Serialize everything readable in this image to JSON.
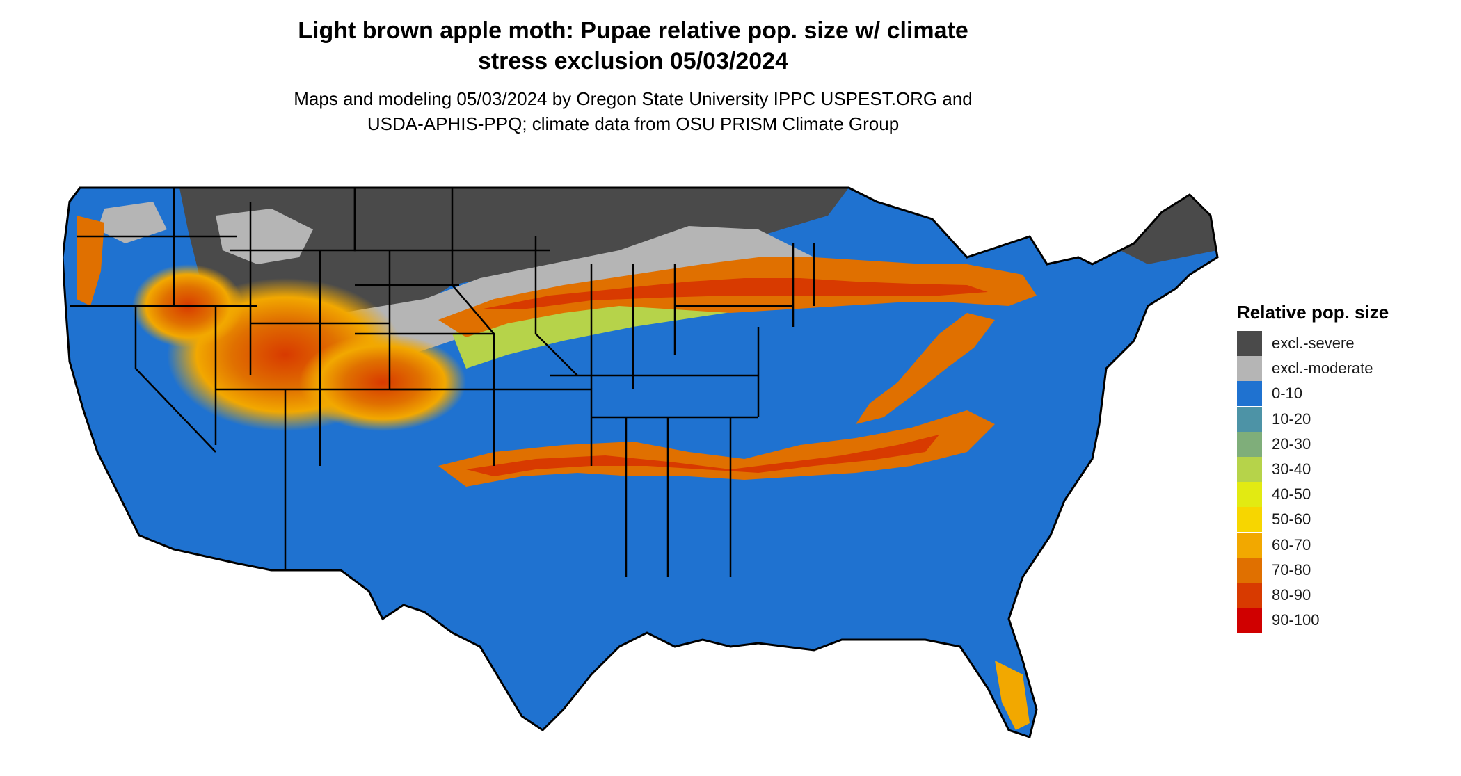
{
  "title_line1": "Light brown apple moth: Pupae relative pop. size w/ climate",
  "title_line2": "stress exclusion 05/03/2024",
  "subtitle_line1": "Maps and modeling 05/03/2024 by Oregon State University IPPC USPEST.ORG and",
  "subtitle_line2": "USDA-APHIS-PPQ; climate data from OSU PRISM Climate Group",
  "legend": {
    "title": "Relative pop. size",
    "items": [
      {
        "label": "excl.-severe",
        "color": "#4a4a4a"
      },
      {
        "label": "excl.-moderate",
        "color": "#b5b5b5"
      },
      {
        "label": "0-10",
        "color": "#1f72d0"
      },
      {
        "label": "10-20",
        "color": "#4d93a6"
      },
      {
        "label": "20-30",
        "color": "#7fae7a"
      },
      {
        "label": "30-40",
        "color": "#b6d34a"
      },
      {
        "label": "40-50",
        "color": "#e2ea12"
      },
      {
        "label": "50-60",
        "color": "#f7d600"
      },
      {
        "label": "60-70",
        "color": "#f2a800"
      },
      {
        "label": "70-80",
        "color": "#e07000"
      },
      {
        "label": "80-90",
        "color": "#d83a00"
      },
      {
        "label": "90-100",
        "color": "#d00000"
      }
    ]
  }
}
